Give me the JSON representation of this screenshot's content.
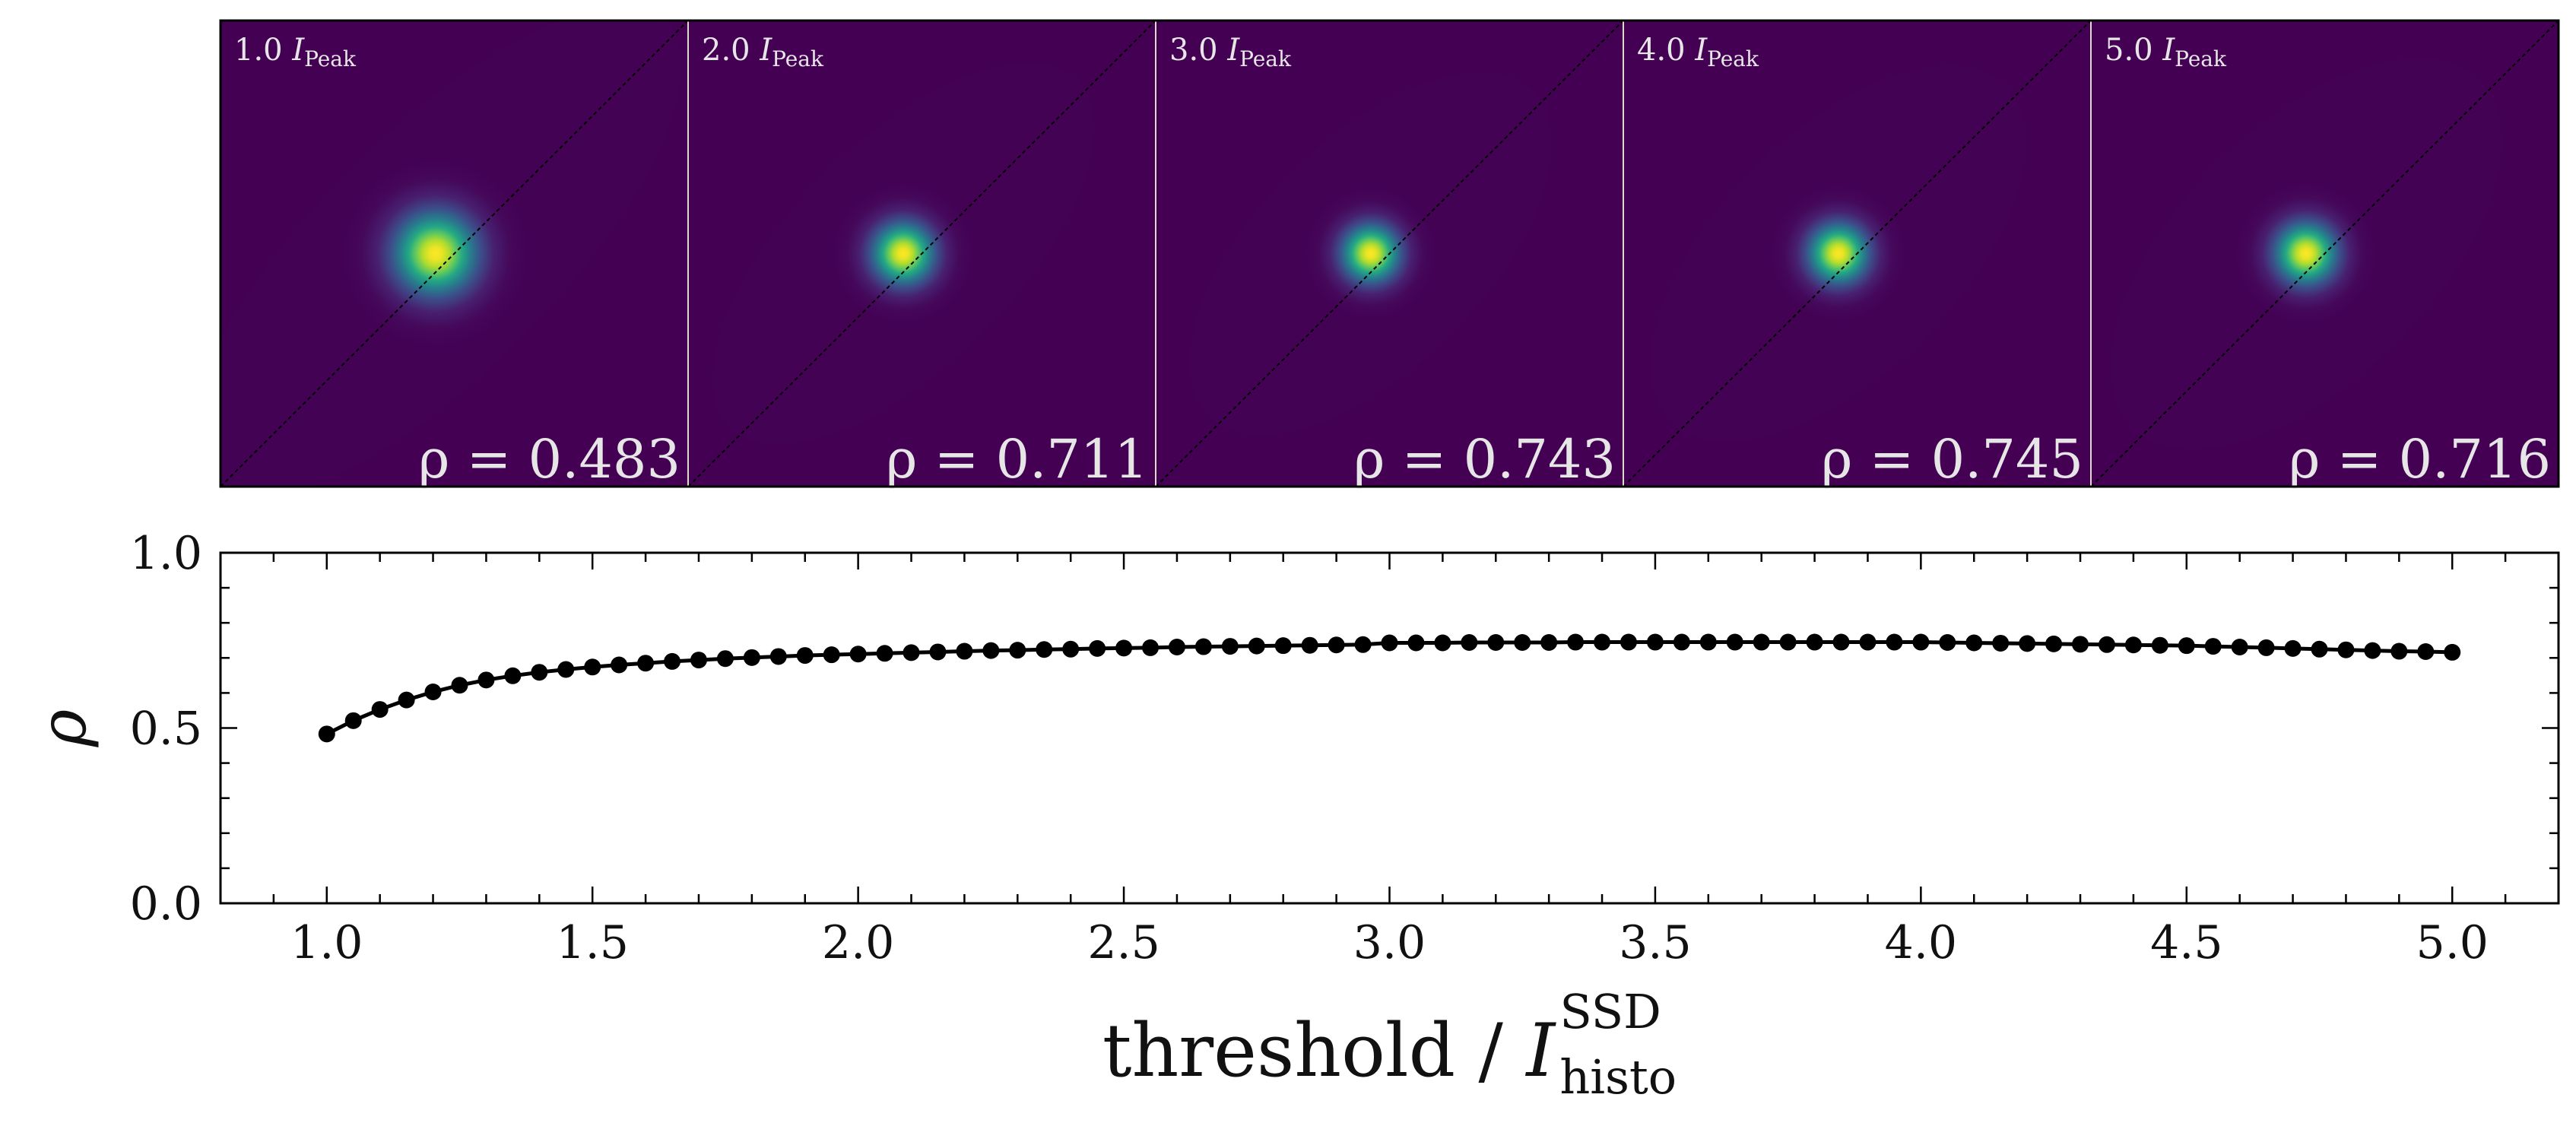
{
  "chart_data": [
    {
      "type": "heatmap",
      "panels": [
        {
          "label": "1.0",
          "label_symbol": "I",
          "label_subscript": "Peak",
          "rho_text": "ρ = 0.483",
          "rho": 0.483,
          "sx": 0.118,
          "sy": 0.2
        },
        {
          "label": "2.0",
          "label_symbol": "I",
          "label_subscript": "Peak",
          "rho_text": "ρ = 0.711",
          "rho": 0.711,
          "sx": 0.11,
          "sy": 0.15
        },
        {
          "label": "3.0",
          "label_symbol": "I",
          "label_subscript": "Peak",
          "rho_text": "ρ = 0.743",
          "rho": 0.743,
          "sx": 0.112,
          "sy": 0.14
        },
        {
          "label": "4.0",
          "label_symbol": "I",
          "label_subscript": "Peak",
          "rho_text": "ρ = 0.745",
          "rho": 0.745,
          "sx": 0.118,
          "sy": 0.145
        },
        {
          "label": "5.0",
          "label_symbol": "I",
          "label_subscript": "Peak",
          "rho_text": "ρ = 0.716",
          "rho": 0.716,
          "sx": 0.125,
          "sy": 0.15
        }
      ],
      "colormap": "viridis",
      "diagonal_line": true
    },
    {
      "type": "line",
      "markers": true,
      "color": "#000000",
      "xlim": [
        0.8,
        5.2
      ],
      "ylim": [
        0.0,
        1.0
      ],
      "xticks": [
        "1.0",
        "1.5",
        "2.0",
        "2.5",
        "3.0",
        "3.5",
        "4.0",
        "4.5",
        "5.0"
      ],
      "yticks": [
        "0.0",
        "0.5",
        "1.0"
      ],
      "ylabel": "ρ",
      "xlabel_main": "threshold / ",
      "xlabel_symbol": "I",
      "xlabel_superscript": "SSD",
      "xlabel_subscript": "histo",
      "x": [
        1.0,
        1.05,
        1.1,
        1.15,
        1.2,
        1.25,
        1.3,
        1.35,
        1.4,
        1.45,
        1.5,
        1.55,
        1.6,
        1.65,
        1.7,
        1.75,
        1.8,
        1.85,
        1.9,
        1.95,
        2.0,
        2.05,
        2.1,
        2.15,
        2.2,
        2.25,
        2.3,
        2.35,
        2.4,
        2.45,
        2.5,
        2.55,
        2.6,
        2.65,
        2.7,
        2.75,
        2.8,
        2.85,
        2.9,
        2.95,
        3.0,
        3.05,
        3.1,
        3.15,
        3.2,
        3.25,
        3.3,
        3.35,
        3.4,
        3.45,
        3.5,
        3.55,
        3.6,
        3.65,
        3.7,
        3.75,
        3.8,
        3.85,
        3.9,
        3.95,
        4.0,
        4.05,
        4.1,
        4.15,
        4.2,
        4.25,
        4.3,
        4.35,
        4.4,
        4.45,
        4.5,
        4.55,
        4.6,
        4.65,
        4.7,
        4.75,
        4.8,
        4.85,
        4.9,
        4.95,
        5.0
      ],
      "y": [
        0.483,
        0.521,
        0.553,
        0.58,
        0.603,
        0.622,
        0.637,
        0.649,
        0.659,
        0.667,
        0.674,
        0.68,
        0.685,
        0.69,
        0.694,
        0.698,
        0.701,
        0.704,
        0.707,
        0.709,
        0.711,
        0.713,
        0.715,
        0.717,
        0.719,
        0.721,
        0.722,
        0.724,
        0.725,
        0.727,
        0.728,
        0.729,
        0.731,
        0.732,
        0.733,
        0.734,
        0.735,
        0.736,
        0.737,
        0.738,
        0.743,
        0.743,
        0.743,
        0.744,
        0.744,
        0.744,
        0.744,
        0.745,
        0.745,
        0.745,
        0.745,
        0.745,
        0.745,
        0.745,
        0.745,
        0.745,
        0.745,
        0.745,
        0.745,
        0.745,
        0.745,
        0.744,
        0.743,
        0.742,
        0.741,
        0.74,
        0.739,
        0.738,
        0.737,
        0.736,
        0.735,
        0.733,
        0.731,
        0.729,
        0.727,
        0.725,
        0.723,
        0.721,
        0.719,
        0.718,
        0.716
      ]
    }
  ]
}
